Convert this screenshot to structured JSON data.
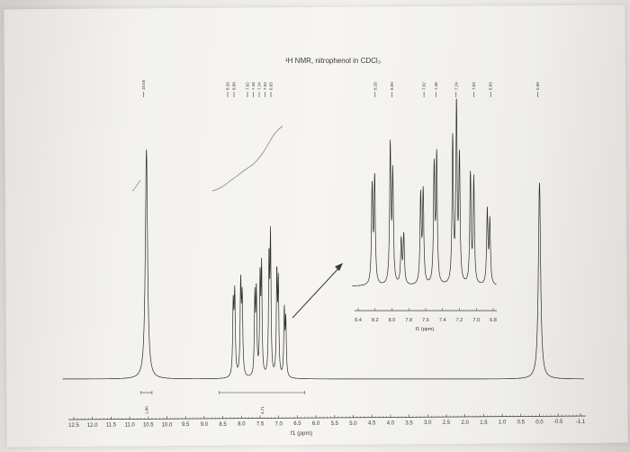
{
  "chart_data": [
    {
      "type": "line",
      "title": "¹H NMR, nitrophenol in CDCl₃",
      "xlabel": "f1 (ppm)",
      "xlim": [
        12.5,
        -1.1
      ],
      "x_axis_reversed": true,
      "ticks": [
        "12.5",
        "12.0",
        "11.5",
        "11.0",
        "10.5",
        "10.0",
        "9.5",
        "9.0",
        "8.5",
        "8.0",
        "7.5",
        "7.0",
        "6.5",
        "6.0",
        "5.5",
        "5.0",
        "4.5",
        "4.0",
        "3.5",
        "3.0",
        "2.5",
        "2.0",
        "1.5",
        "1.0",
        "0.5",
        "0.0",
        "-0.5",
        "-1.1"
      ],
      "peak_labels": [
        {
          "group": "left",
          "labels": [
            "10.55"
          ]
        },
        {
          "group": "aromatic",
          "labels": [
            "8.20",
            "8.00",
            "7.62",
            "7.48",
            "7.24",
            "7.03",
            "6.83"
          ]
        },
        {
          "group": "right",
          "labels": [
            "0.00"
          ]
        }
      ],
      "peaks": [
        {
          "ppm": 10.55,
          "height": 0.92
        },
        {
          "ppm": 0.0,
          "height": 0.79
        }
      ],
      "integrals": [
        {
          "label": "1.00",
          "from": 10.7,
          "to": 10.4
        },
        {
          "label": "4.71",
          "from": 8.6,
          "to": 6.3
        }
      ],
      "grid": false,
      "legend": "none"
    },
    {
      "type": "line",
      "title": "",
      "xlabel": "f1 (ppm)",
      "xlim": [
        8.4,
        6.8
      ],
      "x_axis_reversed": true,
      "ticks": [
        "8.4",
        "8.2",
        "8.0",
        "7.8",
        "7.6",
        "7.4",
        "7.2",
        "7.0",
        "6.8"
      ],
      "peaks_ppm": [
        8.2,
        8.0,
        7.62,
        7.48,
        7.24,
        7.03,
        6.83
      ],
      "grid": false,
      "legend": "none"
    }
  ],
  "colors": {
    "ink": "#3a3a3a",
    "trace": "#2b2b2b",
    "integral": "#8a8a8a"
  }
}
